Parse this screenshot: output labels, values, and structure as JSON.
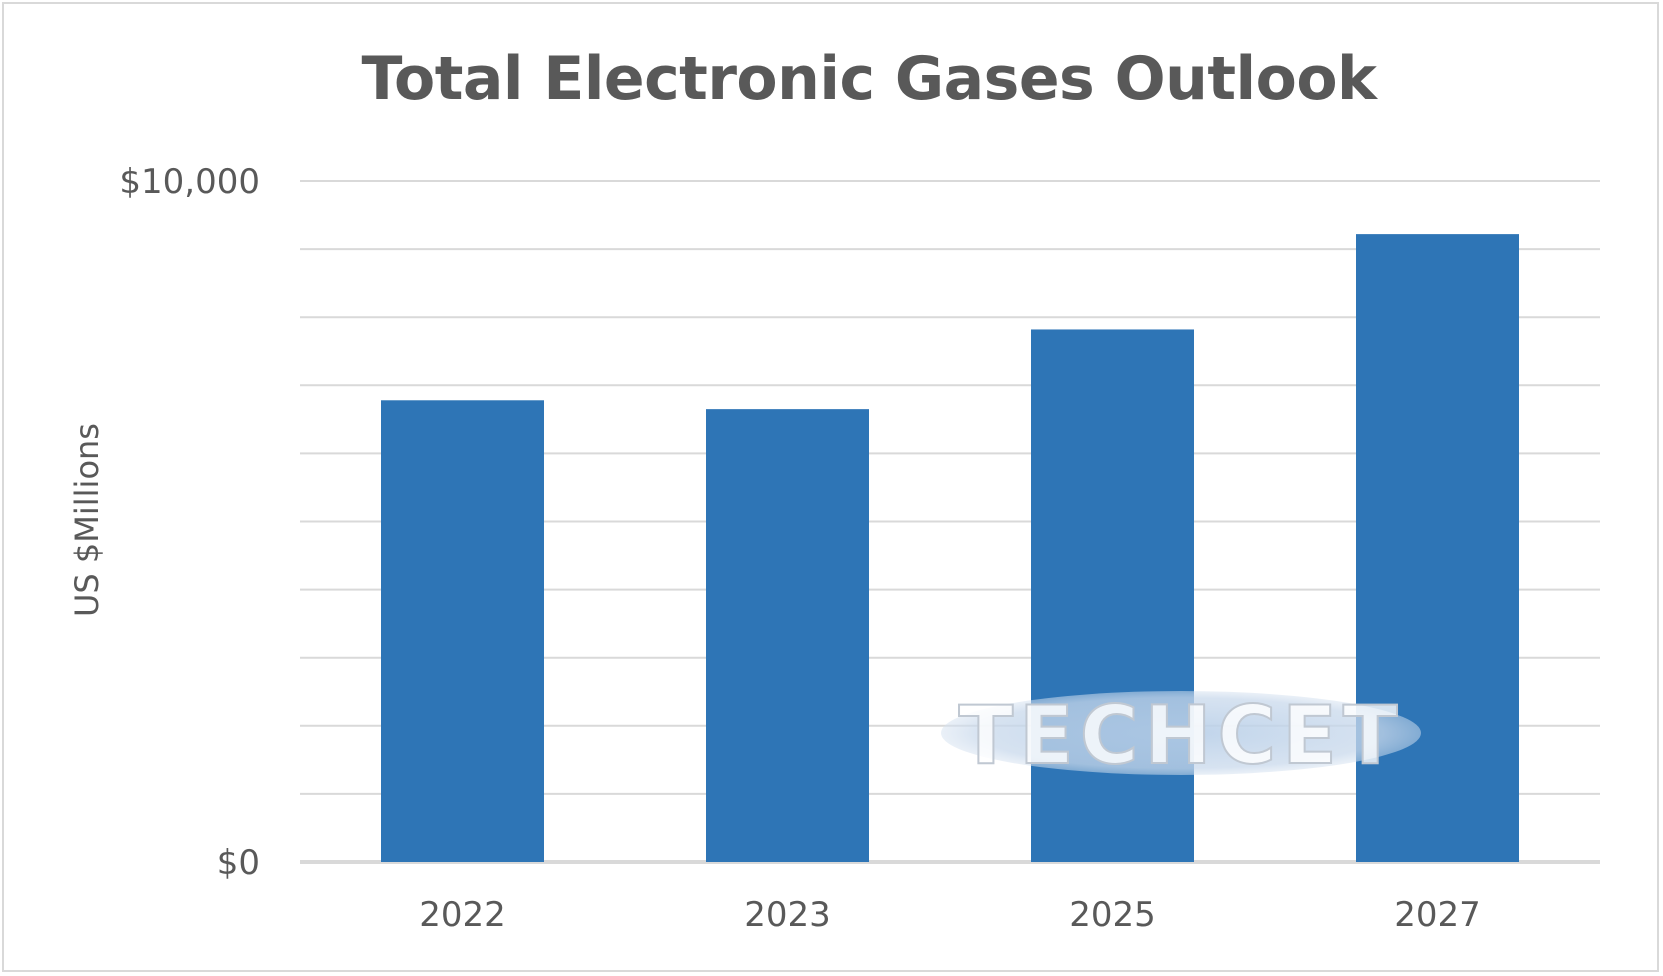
{
  "chart_data": {
    "type": "bar",
    "title": "Total Electronic Gases Outlook",
    "ylabel": "US $Millions",
    "xlabel": "",
    "categories": [
      "2022",
      "2023",
      "2025",
      "2027"
    ],
    "values": [
      6780,
      6650,
      7820,
      9220
    ],
    "ylim": [
      0,
      10000
    ],
    "yticks": [
      {
        "value": 0,
        "label": "$0"
      },
      {
        "value": 10000,
        "label": "$10,000"
      }
    ],
    "gridlines": [
      0,
      1000,
      2000,
      3000,
      4000,
      5000,
      6000,
      7000,
      8000,
      9000,
      10000
    ],
    "grid": true,
    "legend": "none",
    "bar_color": "#2e75b6",
    "grid_color": "#d9d9d9",
    "text_color": "#595959"
  },
  "watermark": {
    "text": "TECHCET"
  }
}
